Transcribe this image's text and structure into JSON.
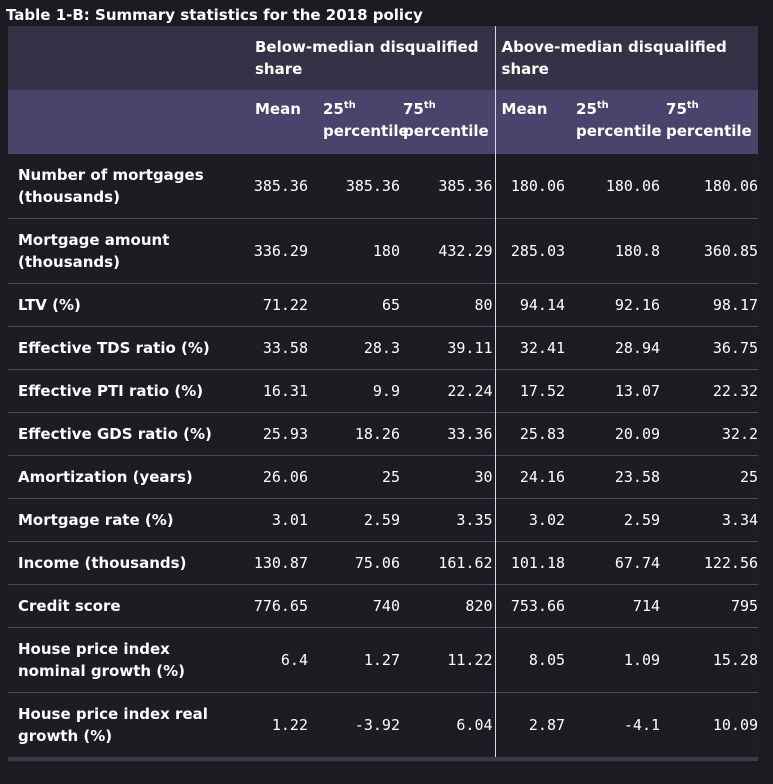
{
  "caption": "Table 1-B: Summary statistics for the 2018 policy",
  "groups": {
    "below": "Below-median disqualified share",
    "above": "Above-median disqualified share"
  },
  "subheaders": {
    "mean": "Mean",
    "p25_num": "25",
    "p75_num": "75",
    "ordinal_suffix": "th",
    "percentile": "percentile"
  },
  "rows": [
    {
      "label": "Number of mortgages (thousands)",
      "values": [
        "385.36",
        "385.36",
        "385.36",
        "180.06",
        "180.06",
        "180.06"
      ]
    },
    {
      "label": "Mortgage amount (thousands)",
      "values": [
        "336.29",
        "180",
        "432.29",
        "285.03",
        "180.8",
        "360.85"
      ]
    },
    {
      "label": "LTV (%)",
      "values": [
        "71.22",
        "65",
        "80",
        "94.14",
        "92.16",
        "98.17"
      ]
    },
    {
      "label": "Effective TDS ratio (%)",
      "values": [
        "33.58",
        "28.3",
        "39.11",
        "32.41",
        "28.94",
        "36.75"
      ]
    },
    {
      "label": "Effective PTI ratio (%)",
      "values": [
        "16.31",
        "9.9",
        "22.24",
        "17.52",
        "13.07",
        "22.32"
      ]
    },
    {
      "label": "Effective GDS ratio (%)",
      "values": [
        "25.93",
        "18.26",
        "33.36",
        "25.83",
        "20.09",
        "32.2"
      ]
    },
    {
      "label": "Amortization (years)",
      "values": [
        "26.06",
        "25",
        "30",
        "24.16",
        "23.58",
        "25"
      ]
    },
    {
      "label": "Mortgage rate (%)",
      "values": [
        "3.01",
        "2.59",
        "3.35",
        "3.02",
        "2.59",
        "3.34"
      ]
    },
    {
      "label": "Income (thousands)",
      "values": [
        "130.87",
        "75.06",
        "161.62",
        "101.18",
        "67.74",
        "122.56"
      ]
    },
    {
      "label": "Credit score",
      "values": [
        "776.65",
        "740",
        "820",
        "753.66",
        "714",
        "795"
      ]
    },
    {
      "label": "House price index nominal growth (%)",
      "values": [
        "6.4",
        "1.27",
        "11.22",
        "8.05",
        "1.09",
        "15.28"
      ]
    },
    {
      "label": "House price index real growth (%)",
      "values": [
        "1.22",
        "-3.92",
        "6.04",
        "2.87",
        "-4.1",
        "10.09"
      ]
    }
  ]
}
